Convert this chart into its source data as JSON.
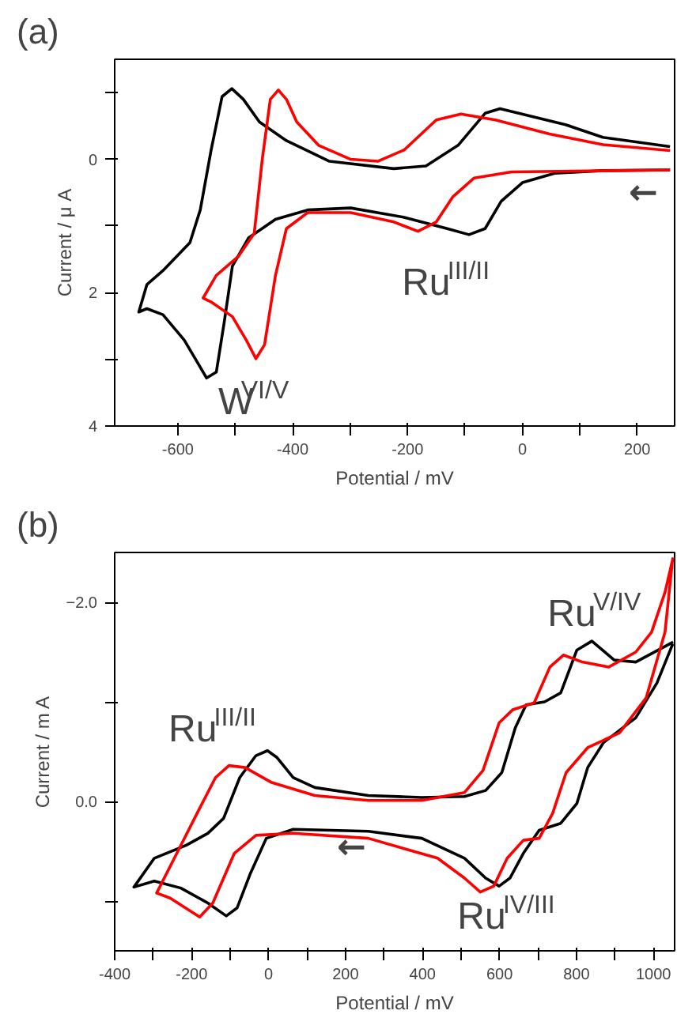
{
  "chart_data": [
    {
      "type": "line",
      "title": "(a)",
      "xlabel": "Potential / mV",
      "ylabel": "Current / μ A",
      "xlim": [
        -710,
        265
      ],
      "ylim": [
        4,
        -1.5
      ],
      "xticks": [
        -600,
        {
          "value": -500,
          "label": null
        },
        -400,
        {
          "value": -300,
          "label": null
        },
        -200,
        {
          "value": -100,
          "label": null
        },
        0,
        {
          "value": 100,
          "label": null
        },
        200
      ],
      "yticks": [
        {
          "value": -1,
          "label": null
        },
        0,
        {
          "value": 1,
          "label": null
        },
        2,
        {
          "value": 3,
          "label": null
        },
        4
      ],
      "grid": false,
      "line_style": "solid",
      "marker": "none",
      "series": [
        {
          "color": "#000000",
          "x": [
            257,
            140,
            75,
            -39,
            -65,
            -112,
            -168,
            -224,
            -336,
            -411,
            -458,
            -486,
            -506,
            -523,
            -542,
            -561,
            -579,
            -626,
            -654,
            -668,
            -654,
            -626,
            -589,
            -565,
            -550,
            -533,
            -519,
            -505,
            -477,
            -430,
            -374,
            -299,
            -206,
            -131,
            -93,
            -65,
            -37,
            0,
            56,
            140,
            257
          ],
          "values": [
            -0.19,
            -0.33,
            -0.52,
            -0.76,
            -0.69,
            -0.21,
            0.1,
            0.14,
            0.03,
            -0.28,
            -0.56,
            -0.9,
            -1.06,
            -0.94,
            -0.14,
            0.76,
            1.25,
            1.67,
            1.88,
            2.29,
            2.24,
            2.33,
            2.71,
            3.06,
            3.28,
            3.19,
            2.43,
            1.6,
            1.18,
            0.9,
            0.76,
            0.73,
            0.87,
            1.04,
            1.13,
            1.04,
            0.63,
            0.35,
            0.21,
            0.17,
            0.16
          ]
        },
        {
          "color": "#ff0000",
          "x": [
            257,
            140,
            47,
            -47,
            -107,
            -150,
            -206,
            -252,
            -299,
            -355,
            -393,
            -411,
            -425,
            -439,
            -453,
            -467,
            -495,
            -533,
            -556,
            -542,
            -505,
            -481,
            -464,
            -449,
            -430,
            -411,
            -374,
            -299,
            -224,
            -182,
            -150,
            -121,
            -84,
            -19,
            257
          ],
          "values": [
            -0.13,
            -0.22,
            -0.38,
            -0.59,
            -0.68,
            -0.59,
            -0.14,
            0.03,
            0,
            -0.21,
            -0.56,
            -0.9,
            -1.04,
            -0.9,
            0,
            1.11,
            1.46,
            1.74,
            2.08,
            2.14,
            2.36,
            2.71,
            2.99,
            2.78,
            1.74,
            1.04,
            0.8,
            0.8,
            0.94,
            1.08,
            0.94,
            0.56,
            0.28,
            0.19,
            0.16
          ]
        }
      ],
      "annotations": [
        "W$^{VI/V}$",
        "Ru$^{III/II}$",
        "←"
      ]
    },
    {
      "type": "line",
      "title": "(b)",
      "xlabel": "Potential / mV",
      "ylabel": "Current / m A",
      "xlim": [
        -400,
        1055
      ],
      "ylim": [
        1.5,
        -2.5
      ],
      "xticks": [
        -400,
        {
          "value": -300,
          "label": null
        },
        -200,
        {
          "value": -100,
          "label": null
        },
        0,
        {
          "value": 100,
          "label": null
        },
        200,
        {
          "value": 300,
          "label": null
        },
        400,
        {
          "value": 500,
          "label": null
        },
        600,
        {
          "value": 700,
          "label": null
        },
        800,
        {
          "value": 900,
          "label": null
        },
        1000
      ],
      "yticks": [
        {
          "value": -2,
          "label": "−2.0"
        },
        {
          "value": -1,
          "label": null
        },
        {
          "value": 0,
          "label": "0.0"
        },
        {
          "value": 1,
          "label": null
        }
      ],
      "grid": false,
      "line_style": "solid",
      "marker": "none",
      "series": [
        {
          "color": "#000000",
          "x": [
            1051,
            954,
            898,
            840,
            801,
            759,
            717,
            669,
            641,
            606,
            564,
            509,
            398,
            259,
            120,
            64,
            22,
            -3,
            -33,
            -75,
            -117,
            -158,
            -214,
            -297,
            -350,
            -297,
            -228,
            -158,
            -110,
            -82,
            -47,
            -6,
            64,
            259,
            398,
            509,
            564,
            599,
            627,
            662,
            703,
            759,
            801,
            829,
            870,
            954,
            1009,
            1050
          ],
          "values": [
            -1.6,
            -1.4,
            -1.42,
            -1.61,
            -1.52,
            -1.09,
            -1.0,
            -0.97,
            -0.74,
            -0.29,
            -0.11,
            -0.05,
            -0.04,
            -0.06,
            -0.14,
            -0.24,
            -0.44,
            -0.51,
            -0.46,
            -0.24,
            0.17,
            0.32,
            0.44,
            0.57,
            0.86,
            0.8,
            0.87,
            1.02,
            1.15,
            1.07,
            0.72,
            0.37,
            0.28,
            0.3,
            0.37,
            0.57,
            0.77,
            0.85,
            0.77,
            0.52,
            0.29,
            0.22,
            0.02,
            -0.34,
            -0.59,
            -0.84,
            -1.19,
            -1.58
          ]
        },
        {
          "color": "#ff0000",
          "x": [
            1051,
            1030,
            995,
            954,
            884,
            815,
            766,
            731,
            690,
            634,
            599,
            557,
            509,
            398,
            259,
            120,
            8,
            -61,
            -103,
            -138,
            -186,
            -228,
            -291,
            -256,
            -179,
            -145,
            -89,
            -33,
            64,
            259,
            439,
            509,
            550,
            585,
            620,
            662,
            703,
            738,
            773,
            829,
            912,
            981,
            1030,
            1050
          ],
          "values": [
            -2.45,
            -2.1,
            -1.7,
            -1.5,
            -1.35,
            -1.4,
            -1.47,
            -1.35,
            -0.99,
            -0.92,
            -0.79,
            -0.31,
            -0.09,
            -0.01,
            -0.01,
            -0.06,
            -0.19,
            -0.34,
            -0.36,
            -0.24,
            0.12,
            0.44,
            0.92,
            0.97,
            1.16,
            1.02,
            0.52,
            0.34,
            0.32,
            0.37,
            0.57,
            0.77,
            0.91,
            0.85,
            0.57,
            0.39,
            0.37,
            0.12,
            -0.29,
            -0.54,
            -0.69,
            -1.04,
            -1.7,
            -2.44
          ]
        }
      ],
      "annotations": [
        "Ru$^{III/II}$",
        "Ru$^{V/IV}$",
        "Ru$^{IV/III}$",
        "←"
      ]
    }
  ]
}
